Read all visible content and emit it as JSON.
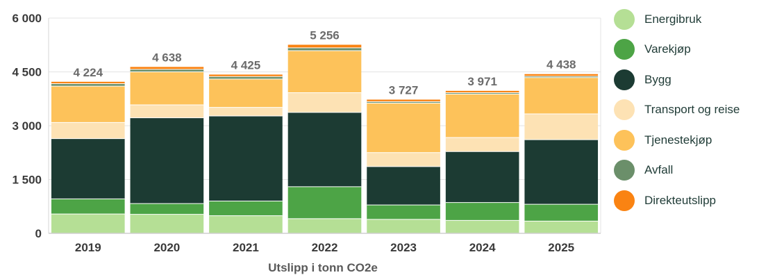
{
  "chart_data": {
    "type": "bar",
    "stacked": true,
    "xlabel": "Utslipp i tonn CO2e",
    "ylabel": "",
    "ylim": [
      0,
      6000
    ],
    "yticks": [
      0,
      1500,
      3000,
      4500,
      6000
    ],
    "ytick_labels": [
      "0",
      "1 500",
      "3 000",
      "4 500",
      "6 000"
    ],
    "categories": [
      "2019",
      "2020",
      "2021",
      "2022",
      "2023",
      "2024",
      "2025"
    ],
    "totals": [
      4224,
      4638,
      4425,
      5256,
      3727,
      3971,
      4438
    ],
    "total_labels": [
      "4 224",
      "4 638",
      "4 425",
      "5 256",
      "3 727",
      "3 971",
      "4 438"
    ],
    "grid": true,
    "legend_position": "right",
    "series": [
      {
        "name": "Energibruk",
        "color": "#b5df95",
        "values": [
          540,
          530,
          490,
          410,
          390,
          360,
          340
        ]
      },
      {
        "name": "Varekjøp",
        "color": "#4da446",
        "values": [
          420,
          300,
          410,
          890,
          400,
          500,
          470
        ]
      },
      {
        "name": "Bygg",
        "color": "#1c3b33",
        "values": [
          1680,
          2390,
          2370,
          2070,
          1070,
          1420,
          1800
        ]
      },
      {
        "name": "Transport og reise",
        "color": "#fde2b4",
        "values": [
          450,
          360,
          240,
          550,
          390,
          390,
          720
        ]
      },
      {
        "name": "Tjenestekjøp",
        "color": "#fdc25a",
        "values": [
          1010,
          920,
          790,
          1170,
          1380,
          1210,
          1010
        ]
      },
      {
        "name": "Avfall",
        "color": "#6b8f6a",
        "values": [
          70,
          70,
          70,
          80,
          40,
          40,
          40
        ]
      },
      {
        "name": "Direkteutslipp",
        "color": "#fa8312",
        "values": [
          54,
          68,
          55,
          86,
          57,
          51,
          58
        ]
      }
    ]
  }
}
